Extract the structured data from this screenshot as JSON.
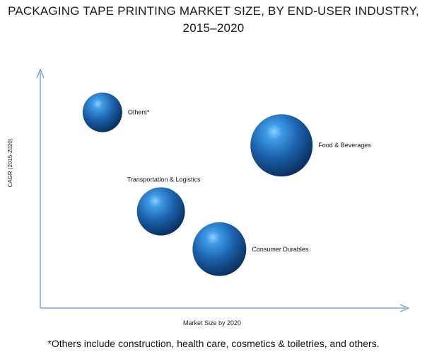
{
  "title_line1": "PACKAGING TAPE PRINTING MARKET SIZE, BY END-USER INDUSTRY,",
  "title_line2": "2015–2020",
  "footnote": "*Others include construction, health care, cosmetics & toiletries, and others.",
  "chart_data": {
    "type": "scatter",
    "subtype": "bubble",
    "xlabel": "Market Size by 2020",
    "ylabel": "CAGR (2015-2020)",
    "xlim": [
      0,
      100
    ],
    "ylim": [
      0,
      100
    ],
    "grid": false,
    "legend": "none",
    "axis_tick_labels": false,
    "bubble_color": "#1f5fa3",
    "points": [
      {
        "label": "Others*",
        "x": 17,
        "y": 83,
        "size": 28
      },
      {
        "label": "Food & Beverages",
        "x": 66,
        "y": 69,
        "size": 44
      },
      {
        "label": "Transportation & Logistics",
        "x": 33,
        "y": 41,
        "size": 34
      },
      {
        "label": "Consumer Durables",
        "x": 49,
        "y": 25,
        "size": 38
      }
    ]
  }
}
